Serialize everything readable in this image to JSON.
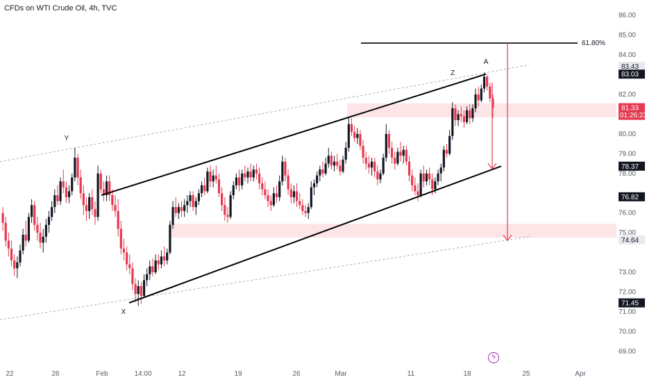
{
  "header": {
    "title": "CFDs on WTI Crude Oil, 4h, TVC"
  },
  "icons": {
    "flash": "lightning-icon",
    "flash_glyph": "ϟ"
  },
  "colors": {
    "up": "#131722",
    "down": "#e53950",
    "zone": "#fde4e7",
    "arrow": "#e53950",
    "dashed": "#9598a1",
    "axis_text": "#555a66"
  },
  "chart_data": {
    "type": "candlestick",
    "title": "CFDs on WTI Crude Oil, 4h, TVC",
    "yticks": [
      86.0,
      85.0,
      84.0,
      82.0,
      80.0,
      79.0,
      78.0,
      76.0,
      75.0,
      73.0,
      72.0,
      71.0,
      70.0,
      69.0
    ],
    "ytick_labels": [
      "86.00",
      "85.00",
      "84.00",
      "82.00",
      "80.00",
      "79.00",
      "78.00",
      "76.00",
      "75.00",
      "73.00",
      "72.00",
      "71.00",
      "70.00",
      "69.00"
    ],
    "xticks": [
      "22",
      "26",
      "Feb",
      "14:00",
      "12",
      "19",
      "26",
      "Mar",
      "11",
      "18",
      "25",
      "Apr"
    ],
    "ylim": [
      68.5,
      86.5
    ],
    "price_tags": [
      {
        "label": "83.43",
        "value": 83.43,
        "style": "gray"
      },
      {
        "label": "83.03",
        "value": 83.03,
        "style": "dark"
      },
      {
        "label": "81.33",
        "sub": "01:26:23",
        "value": 81.33,
        "style": "red"
      },
      {
        "label": "78.37",
        "value": 78.37,
        "style": "dark"
      },
      {
        "label": "76.82",
        "value": 76.82,
        "style": "dark"
      },
      {
        "label": "74.64",
        "value": 74.64,
        "style": "gray"
      },
      {
        "label": "71.45",
        "value": 71.45,
        "style": "dark"
      }
    ],
    "annotations": {
      "fib_label": "61.80%",
      "fib_level": 84.6,
      "points": [
        {
          "label": "Y",
          "value": 79.3
        },
        {
          "label": "X",
          "value": 71.0
        },
        {
          "label": "Z",
          "value": 83.0
        },
        {
          "label": "A",
          "value": 83.4
        }
      ]
    },
    "zones": [
      {
        "from": 80.85,
        "to": 81.55
      },
      {
        "from": 74.75,
        "to": 75.45
      }
    ],
    "channel": {
      "upper": [
        [
          1,
          76.8
        ],
        [
          10,
          83.03
        ]
      ],
      "lower": [
        [
          2.3,
          71.45
        ],
        [
          10.2,
          78.37
        ]
      ],
      "dashed_upper": [
        [
          0,
          78.6
        ],
        [
          10.5,
          83.5
        ]
      ],
      "dashed_lower": [
        [
          0,
          70.6
        ],
        [
          10.5,
          74.8
        ]
      ]
    },
    "arrows": [
      {
        "from": 83.0,
        "to": 78.3
      },
      {
        "from": 84.6,
        "to": 74.64
      }
    ],
    "candles": [
      [
        76.0,
        76.3,
        75.1,
        75.5
      ],
      [
        75.5,
        75.8,
        74.3,
        74.6
      ],
      [
        74.6,
        75.0,
        73.8,
        74.2
      ],
      [
        74.2,
        74.6,
        73.3,
        73.6
      ],
      [
        73.6,
        73.9,
        72.8,
        73.2
      ],
      [
        73.2,
        73.8,
        72.7,
        73.5
      ],
      [
        73.5,
        74.4,
        73.3,
        74.1
      ],
      [
        74.1,
        75.2,
        73.9,
        74.9
      ],
      [
        74.9,
        75.6,
        74.3,
        74.6
      ],
      [
        74.6,
        76.0,
        74.5,
        75.8
      ],
      [
        75.8,
        76.7,
        75.5,
        76.4
      ],
      [
        76.4,
        76.6,
        75.1,
        75.4
      ],
      [
        75.4,
        75.8,
        74.6,
        75.0
      ],
      [
        75.0,
        75.5,
        74.2,
        74.5
      ],
      [
        74.5,
        75.2,
        74.0,
        74.8
      ],
      [
        74.8,
        75.7,
        74.5,
        75.4
      ],
      [
        75.4,
        76.1,
        75.0,
        75.8
      ],
      [
        75.8,
        76.6,
        75.6,
        76.3
      ],
      [
        76.3,
        77.2,
        76.0,
        76.9
      ],
      [
        76.9,
        77.4,
        76.4,
        76.6
      ],
      [
        76.6,
        77.8,
        76.4,
        77.6
      ],
      [
        77.6,
        78.2,
        77.0,
        77.3
      ],
      [
        77.3,
        77.6,
        76.5,
        76.8
      ],
      [
        76.8,
        77.4,
        76.5,
        77.1
      ],
      [
        77.1,
        78.0,
        76.9,
        77.8
      ],
      [
        77.8,
        79.3,
        77.6,
        78.8
      ],
      [
        78.8,
        79.0,
        77.4,
        77.8
      ],
      [
        77.8,
        78.2,
        76.7,
        77.0
      ],
      [
        77.0,
        77.4,
        75.9,
        76.4
      ],
      [
        76.4,
        76.8,
        75.6,
        76.1
      ],
      [
        76.1,
        77.0,
        75.7,
        76.8
      ],
      [
        76.8,
        77.2,
        75.9,
        76.2
      ],
      [
        76.2,
        76.6,
        75.4,
        75.8
      ],
      [
        75.8,
        78.4,
        75.6,
        78.0
      ],
      [
        78.0,
        78.2,
        77.0,
        77.2
      ],
      [
        77.2,
        77.6,
        76.6,
        76.9
      ],
      [
        76.9,
        77.9,
        76.6,
        77.6
      ],
      [
        77.6,
        77.9,
        76.6,
        76.9
      ],
      [
        76.9,
        77.2,
        76.1,
        76.4
      ],
      [
        76.4,
        76.9,
        75.8,
        76.1
      ],
      [
        76.1,
        76.7,
        74.8,
        75.2
      ],
      [
        75.2,
        75.6,
        73.9,
        74.2
      ],
      [
        74.2,
        74.7,
        73.6,
        74.0
      ],
      [
        74.0,
        74.3,
        73.1,
        73.4
      ],
      [
        73.4,
        73.9,
        72.9,
        73.2
      ],
      [
        73.2,
        73.5,
        72.1,
        72.4
      ],
      [
        72.4,
        72.7,
        71.5,
        71.9
      ],
      [
        71.9,
        72.6,
        71.3,
        72.3
      ],
      [
        72.3,
        72.5,
        71.4,
        71.8
      ],
      [
        71.8,
        72.9,
        71.7,
        72.6
      ],
      [
        72.6,
        73.2,
        72.3,
        72.9
      ],
      [
        72.9,
        73.6,
        72.6,
        73.3
      ],
      [
        73.3,
        73.7,
        72.8,
        73.0
      ],
      [
        73.0,
        73.9,
        72.9,
        73.6
      ],
      [
        73.6,
        73.9,
        73.1,
        73.4
      ],
      [
        73.4,
        74.1,
        73.2,
        73.8
      ],
      [
        73.8,
        74.3,
        73.3,
        73.6
      ],
      [
        73.6,
        74.2,
        73.4,
        74.0
      ],
      [
        74.0,
        75.6,
        73.9,
        75.4
      ],
      [
        75.4,
        76.6,
        75.2,
        76.3
      ],
      [
        76.3,
        76.8,
        75.8,
        76.0
      ],
      [
        76.0,
        76.5,
        75.7,
        76.3
      ],
      [
        76.3,
        76.6,
        75.8,
        76.1
      ],
      [
        76.1,
        76.7,
        75.8,
        76.4
      ],
      [
        76.4,
        76.9,
        76.0,
        76.6
      ],
      [
        76.6,
        77.1,
        76.3,
        76.9
      ],
      [
        76.9,
        77.1,
        76.1,
        76.3
      ],
      [
        76.3,
        76.8,
        75.9,
        76.6
      ],
      [
        76.6,
        77.2,
        76.4,
        77.0
      ],
      [
        77.0,
        77.6,
        76.8,
        77.4
      ],
      [
        77.4,
        77.8,
        76.9,
        77.1
      ],
      [
        77.1,
        78.3,
        77.0,
        78.1
      ],
      [
        78.1,
        78.4,
        77.3,
        77.6
      ],
      [
        77.6,
        78.2,
        77.3,
        77.9
      ],
      [
        77.9,
        78.4,
        77.5,
        77.7
      ],
      [
        77.7,
        78.0,
        76.8,
        77.0
      ],
      [
        77.0,
        77.3,
        76.1,
        76.4
      ],
      [
        76.4,
        76.8,
        75.6,
        75.9
      ],
      [
        75.9,
        76.3,
        75.5,
        75.8
      ],
      [
        75.8,
        77.1,
        75.7,
        76.9
      ],
      [
        76.9,
        77.6,
        76.7,
        77.4
      ],
      [
        77.4,
        78.0,
        77.2,
        77.8
      ],
      [
        77.8,
        78.2,
        77.1,
        77.4
      ],
      [
        77.4,
        78.2,
        77.2,
        78.0
      ],
      [
        78.0,
        78.4,
        77.6,
        77.8
      ],
      [
        77.8,
        78.3,
        77.5,
        78.1
      ],
      [
        78.1,
        78.5,
        77.6,
        77.8
      ],
      [
        77.8,
        78.4,
        77.6,
        78.2
      ],
      [
        78.2,
        78.5,
        77.7,
        78.0
      ],
      [
        78.0,
        78.3,
        77.2,
        77.5
      ],
      [
        77.5,
        77.8,
        76.9,
        77.2
      ],
      [
        77.2,
        77.6,
        76.7,
        76.9
      ],
      [
        76.9,
        77.2,
        76.3,
        76.6
      ],
      [
        76.6,
        76.9,
        76.1,
        76.4
      ],
      [
        76.4,
        77.3,
        76.3,
        77.0
      ],
      [
        77.0,
        77.4,
        76.5,
        76.8
      ],
      [
        76.8,
        77.9,
        76.6,
        77.6
      ],
      [
        77.6,
        78.9,
        77.4,
        78.6
      ],
      [
        78.6,
        78.8,
        77.6,
        77.9
      ],
      [
        77.9,
        78.2,
        76.9,
        77.2
      ],
      [
        77.2,
        77.5,
        76.5,
        76.8
      ],
      [
        76.8,
        77.4,
        76.5,
        77.1
      ],
      [
        77.1,
        77.5,
        76.3,
        76.6
      ],
      [
        76.6,
        77.0,
        76.2,
        76.4
      ],
      [
        76.4,
        76.7,
        75.9,
        76.1
      ],
      [
        76.1,
        76.4,
        75.8,
        76.0
      ],
      [
        76.0,
        76.5,
        75.7,
        76.3
      ],
      [
        76.3,
        77.6,
        76.2,
        77.3
      ],
      [
        77.3,
        77.7,
        76.9,
        77.5
      ],
      [
        77.5,
        78.1,
        77.3,
        77.9
      ],
      [
        77.9,
        78.4,
        77.6,
        78.2
      ],
      [
        78.2,
        78.6,
        77.8,
        78.0
      ],
      [
        78.0,
        78.8,
        77.9,
        78.5
      ],
      [
        78.5,
        79.3,
        78.3,
        78.9
      ],
      [
        78.9,
        79.1,
        78.2,
        78.4
      ],
      [
        78.4,
        78.9,
        78.1,
        78.6
      ],
      [
        78.6,
        79.0,
        78.2,
        78.4
      ],
      [
        78.4,
        78.7,
        77.9,
        78.1
      ],
      [
        78.1,
        78.9,
        78.0,
        78.7
      ],
      [
        78.7,
        79.6,
        78.5,
        79.3
      ],
      [
        79.3,
        80.8,
        79.1,
        80.5
      ],
      [
        80.5,
        80.8,
        79.9,
        80.1
      ],
      [
        80.1,
        80.4,
        79.6,
        79.8
      ],
      [
        79.8,
        80.3,
        79.5,
        80.0
      ],
      [
        80.0,
        80.2,
        79.2,
        79.4
      ],
      [
        79.4,
        79.7,
        78.5,
        78.8
      ],
      [
        78.8,
        79.1,
        78.2,
        78.5
      ],
      [
        78.5,
        78.9,
        78.0,
        78.3
      ],
      [
        78.3,
        78.8,
        77.9,
        78.6
      ],
      [
        78.6,
        78.8,
        77.8,
        78.1
      ],
      [
        78.1,
        78.4,
        77.4,
        77.7
      ],
      [
        77.7,
        78.2,
        77.5,
        78.0
      ],
      [
        78.0,
        79.0,
        77.9,
        78.8
      ],
      [
        78.8,
        80.5,
        78.6,
        80.0
      ],
      [
        80.0,
        80.2,
        79.0,
        79.3
      ],
      [
        79.3,
        79.6,
        78.5,
        78.8
      ],
      [
        78.8,
        79.1,
        78.2,
        78.5
      ],
      [
        78.5,
        79.3,
        78.4,
        79.1
      ],
      [
        79.1,
        79.6,
        78.6,
        78.9
      ],
      [
        78.9,
        79.4,
        78.5,
        79.2
      ],
      [
        79.2,
        79.4,
        78.4,
        78.6
      ],
      [
        78.6,
        78.9,
        77.6,
        77.9
      ],
      [
        77.9,
        78.2,
        77.1,
        77.4
      ],
      [
        77.4,
        77.8,
        76.9,
        77.1
      ],
      [
        77.1,
        77.5,
        76.6,
        76.9
      ],
      [
        76.9,
        78.2,
        76.8,
        78.0
      ],
      [
        78.0,
        78.4,
        77.3,
        77.6
      ],
      [
        77.6,
        78.2,
        77.4,
        78.0
      ],
      [
        78.0,
        78.3,
        77.4,
        77.7
      ],
      [
        77.7,
        78.0,
        76.9,
        77.2
      ],
      [
        77.2,
        77.8,
        77.0,
        77.6
      ],
      [
        77.6,
        78.2,
        77.4,
        78.0
      ],
      [
        78.0,
        78.5,
        77.6,
        78.3
      ],
      [
        78.3,
        79.4,
        78.1,
        79.2
      ],
      [
        79.2,
        79.5,
        78.8,
        79.0
      ],
      [
        79.0,
        80.2,
        78.9,
        79.9
      ],
      [
        79.9,
        81.6,
        79.7,
        81.3
      ],
      [
        81.3,
        81.5,
        80.4,
        80.7
      ],
      [
        80.7,
        81.2,
        80.4,
        81.0
      ],
      [
        81.0,
        81.4,
        80.6,
        80.9
      ],
      [
        80.9,
        81.2,
        80.3,
        80.6
      ],
      [
        80.6,
        81.4,
        80.5,
        81.2
      ],
      [
        81.2,
        81.5,
        80.5,
        80.8
      ],
      [
        80.8,
        81.5,
        80.6,
        81.3
      ],
      [
        81.3,
        82.3,
        81.1,
        82.0
      ],
      [
        82.0,
        82.4,
        81.4,
        81.7
      ],
      [
        81.7,
        82.5,
        81.6,
        82.3
      ],
      [
        82.3,
        83.1,
        82.1,
        82.9
      ],
      [
        82.9,
        83.0,
        82.2,
        82.4
      ],
      [
        82.4,
        82.6,
        81.6,
        81.8
      ],
      [
        81.8,
        82.0,
        80.8,
        81.33
      ]
    ]
  }
}
